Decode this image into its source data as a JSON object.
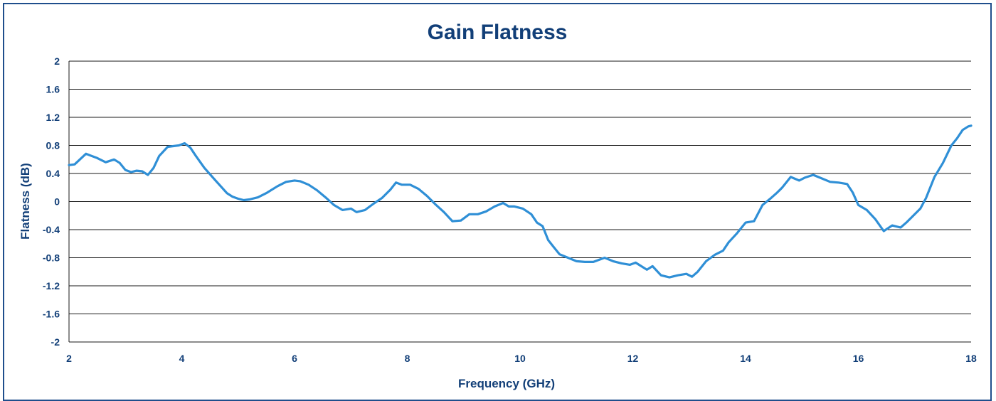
{
  "chart_data": {
    "type": "line",
    "title": "Gain Flatness",
    "xlabel": "Frequency (GHz)",
    "ylabel": "Flatness (dB)",
    "xlim": [
      2,
      18
    ],
    "ylim": [
      -2,
      2
    ],
    "x_ticks": [
      "2",
      "4",
      "6",
      "8",
      "10",
      "12",
      "14",
      "16",
      "18"
    ],
    "y_ticks": [
      "2",
      "1.6",
      "1.2",
      "0.8",
      "0.4",
      "0",
      "-0.4",
      "-0.8",
      "-1.2",
      "-1.6",
      "-2"
    ],
    "grid": "horizontal",
    "colors": {
      "line": "#2f8fd6",
      "grid": "#1a1a1a",
      "text": "#123f78",
      "frame": "#1f4e8c"
    },
    "series": [
      {
        "x": [
          2.0,
          2.1,
          2.3,
          2.5,
          2.65,
          2.8,
          2.9,
          3.0,
          3.1,
          3.2,
          3.3,
          3.4,
          3.5,
          3.6,
          3.75,
          3.85,
          3.95,
          4.05,
          4.15,
          4.25,
          4.4,
          4.6,
          4.8,
          4.9,
          5.0,
          5.1,
          5.2,
          5.35,
          5.5,
          5.7,
          5.85,
          6.0,
          6.1,
          6.25,
          6.4,
          6.55,
          6.7,
          6.85,
          7.0,
          7.1,
          7.25,
          7.4,
          7.55,
          7.7,
          7.8,
          7.9,
          8.05,
          8.2,
          8.35,
          8.5,
          8.65,
          8.8,
          8.95,
          9.1,
          9.25,
          9.4,
          9.55,
          9.7,
          9.8,
          9.9,
          10.05,
          10.2,
          10.3,
          10.4,
          10.5,
          10.6,
          10.7,
          10.85,
          11.0,
          11.15,
          11.3,
          11.5,
          11.65,
          11.8,
          11.95,
          12.05,
          12.15,
          12.25,
          12.35,
          12.5,
          12.65,
          12.8,
          12.95,
          13.05,
          13.15,
          13.3,
          13.45,
          13.6,
          13.7,
          13.85,
          14.0,
          14.15,
          14.3,
          14.45,
          14.55,
          14.65,
          14.8,
          14.95,
          15.05,
          15.2,
          15.35,
          15.5,
          15.65,
          15.8,
          15.9,
          16.0,
          16.15,
          16.3,
          16.45,
          16.6,
          16.75,
          16.85,
          16.95,
          17.1,
          17.2,
          17.35,
          17.5,
          17.65,
          17.75,
          17.85,
          17.95,
          18.0
        ],
        "values": [
          0.52,
          0.53,
          0.68,
          0.62,
          0.56,
          0.6,
          0.55,
          0.45,
          0.42,
          0.44,
          0.43,
          0.38,
          0.48,
          0.65,
          0.78,
          0.79,
          0.8,
          0.83,
          0.77,
          0.65,
          0.48,
          0.3,
          0.12,
          0.07,
          0.04,
          0.02,
          0.03,
          0.06,
          0.12,
          0.22,
          0.28,
          0.3,
          0.29,
          0.24,
          0.16,
          0.06,
          -0.05,
          -0.12,
          -0.1,
          -0.15,
          -0.12,
          -0.03,
          0.05,
          0.17,
          0.27,
          0.24,
          0.24,
          0.18,
          0.08,
          -0.04,
          -0.15,
          -0.28,
          -0.27,
          -0.18,
          -0.18,
          -0.14,
          -0.07,
          -0.02,
          -0.07,
          -0.07,
          -0.1,
          -0.18,
          -0.3,
          -0.35,
          -0.55,
          -0.65,
          -0.75,
          -0.8,
          -0.85,
          -0.86,
          -0.86,
          -0.8,
          -0.85,
          -0.88,
          -0.9,
          -0.87,
          -0.92,
          -0.97,
          -0.92,
          -1.05,
          -1.08,
          -1.05,
          -1.03,
          -1.07,
          -1.0,
          -0.85,
          -0.76,
          -0.7,
          -0.58,
          -0.45,
          -0.3,
          -0.28,
          -0.05,
          0.05,
          0.12,
          0.2,
          0.35,
          0.3,
          0.34,
          0.38,
          0.33,
          0.28,
          0.27,
          0.25,
          0.13,
          -0.05,
          -0.12,
          -0.25,
          -0.42,
          -0.34,
          -0.37,
          -0.3,
          -0.22,
          -0.1,
          0.05,
          0.35,
          0.55,
          0.8,
          0.9,
          1.02,
          1.07,
          1.08
        ]
      }
    ]
  }
}
